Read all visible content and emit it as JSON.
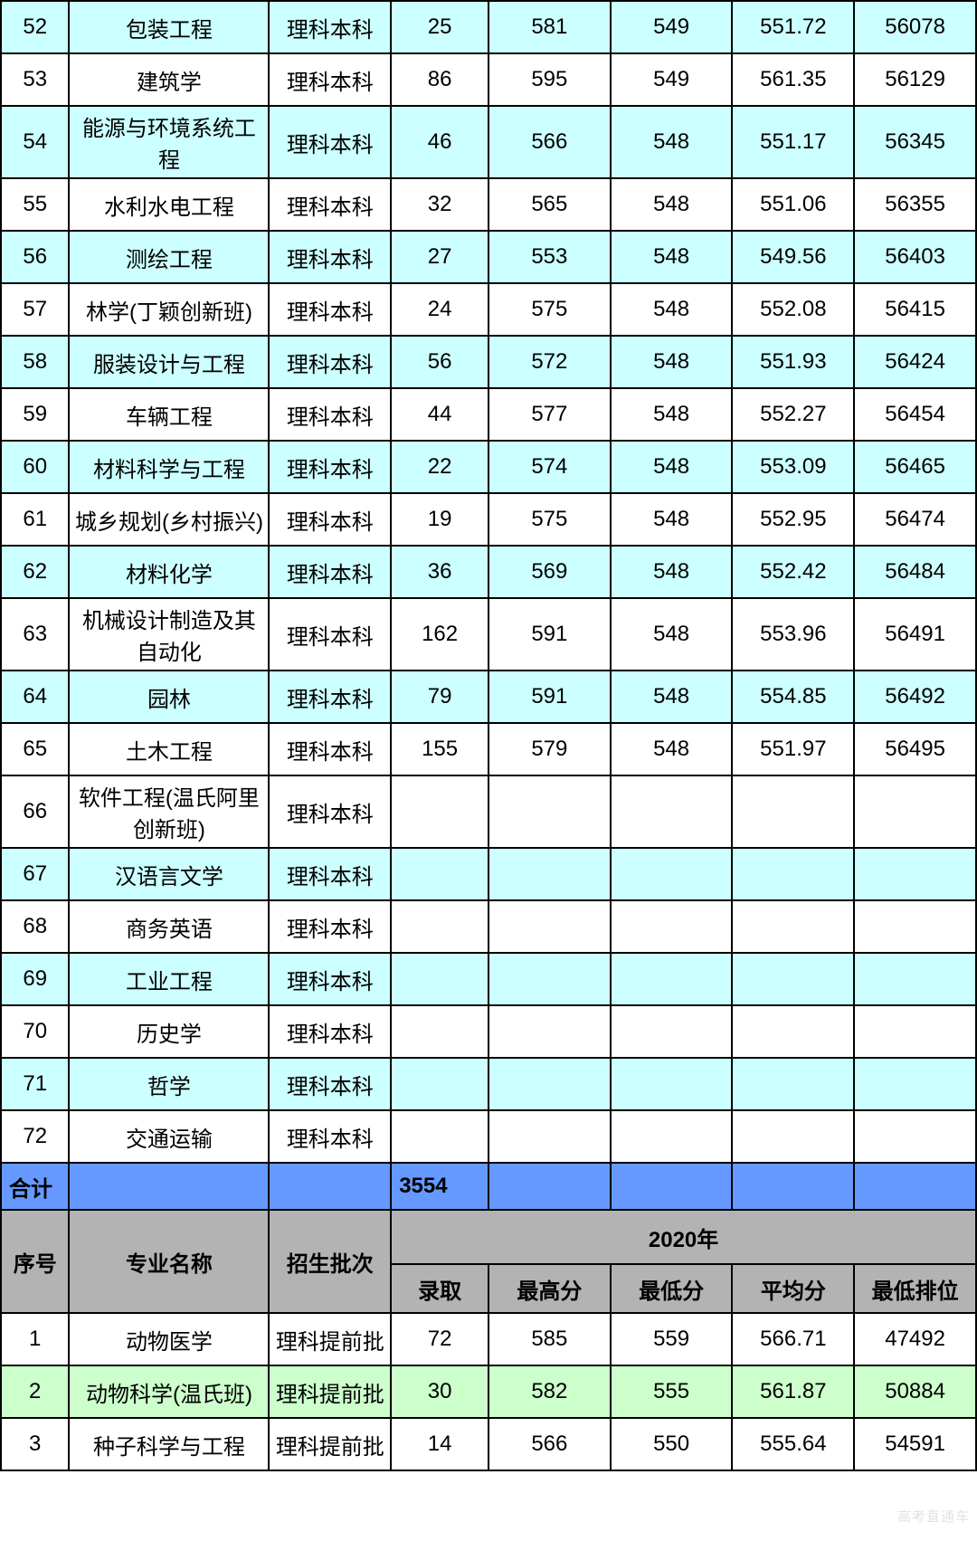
{
  "columns": {
    "widths_pct": [
      7.0,
      20.5,
      12.5,
      10.0,
      12.5,
      12.5,
      12.5,
      12.5
    ]
  },
  "top_rows": [
    {
      "n": "52",
      "major": "包装工程",
      "batch": "理科本科",
      "c4": "25",
      "c5": "581",
      "c6": "549",
      "c7": "551.72",
      "c8": "56078",
      "style": "even"
    },
    {
      "n": "53",
      "major": "建筑学",
      "batch": "理科本科",
      "c4": "86",
      "c5": "595",
      "c6": "549",
      "c7": "561.35",
      "c8": "56129",
      "style": "odd"
    },
    {
      "n": "54",
      "major": "能源与环境系统工程",
      "batch": "理科本科",
      "c4": "46",
      "c5": "566",
      "c6": "548",
      "c7": "551.17",
      "c8": "56345",
      "style": "even"
    },
    {
      "n": "55",
      "major": "水利水电工程",
      "batch": "理科本科",
      "c4": "32",
      "c5": "565",
      "c6": "548",
      "c7": "551.06",
      "c8": "56355",
      "style": "odd"
    },
    {
      "n": "56",
      "major": "测绘工程",
      "batch": "理科本科",
      "c4": "27",
      "c5": "553",
      "c6": "548",
      "c7": "549.56",
      "c8": "56403",
      "style": "even"
    },
    {
      "n": "57",
      "major": "林学(丁颖创新班)",
      "batch": "理科本科",
      "c4": "24",
      "c5": "575",
      "c6": "548",
      "c7": "552.08",
      "c8": "56415",
      "style": "odd"
    },
    {
      "n": "58",
      "major": "服装设计与工程",
      "batch": "理科本科",
      "c4": "56",
      "c5": "572",
      "c6": "548",
      "c7": "551.93",
      "c8": "56424",
      "style": "even"
    },
    {
      "n": "59",
      "major": "车辆工程",
      "batch": "理科本科",
      "c4": "44",
      "c5": "577",
      "c6": "548",
      "c7": "552.27",
      "c8": "56454",
      "style": "odd"
    },
    {
      "n": "60",
      "major": "材料科学与工程",
      "batch": "理科本科",
      "c4": "22",
      "c5": "574",
      "c6": "548",
      "c7": "553.09",
      "c8": "56465",
      "style": "even"
    },
    {
      "n": "61",
      "major": "城乡规划(乡村振兴)",
      "batch": "理科本科",
      "c4": "19",
      "c5": "575",
      "c6": "548",
      "c7": "552.95",
      "c8": "56474",
      "style": "odd"
    },
    {
      "n": "62",
      "major": "材料化学",
      "batch": "理科本科",
      "c4": "36",
      "c5": "569",
      "c6": "548",
      "c7": "552.42",
      "c8": "56484",
      "style": "even"
    },
    {
      "n": "63",
      "major": "机械设计制造及其自动化",
      "batch": "理科本科",
      "c4": "162",
      "c5": "591",
      "c6": "548",
      "c7": "553.96",
      "c8": "56491",
      "style": "odd"
    },
    {
      "n": "64",
      "major": "园林",
      "batch": "理科本科",
      "c4": "79",
      "c5": "591",
      "c6": "548",
      "c7": "554.85",
      "c8": "56492",
      "style": "even"
    },
    {
      "n": "65",
      "major": "土木工程",
      "batch": "理科本科",
      "c4": "155",
      "c5": "579",
      "c6": "548",
      "c7": "551.97",
      "c8": "56495",
      "style": "odd"
    },
    {
      "n": "66",
      "major": "软件工程(温氏阿里创新班)",
      "batch": "理科本科",
      "c4": "",
      "c5": "",
      "c6": "",
      "c7": "",
      "c8": "",
      "style": "odd"
    },
    {
      "n": "67",
      "major": "汉语言文学",
      "batch": "理科本科",
      "c4": "",
      "c5": "",
      "c6": "",
      "c7": "",
      "c8": "",
      "style": "even"
    },
    {
      "n": "68",
      "major": "商务英语",
      "batch": "理科本科",
      "c4": "",
      "c5": "",
      "c6": "",
      "c7": "",
      "c8": "",
      "style": "odd"
    },
    {
      "n": "69",
      "major": "工业工程",
      "batch": "理科本科",
      "c4": "",
      "c5": "",
      "c6": "",
      "c7": "",
      "c8": "",
      "style": "even"
    },
    {
      "n": "70",
      "major": "历史学",
      "batch": "理科本科",
      "c4": "",
      "c5": "",
      "c6": "",
      "c7": "",
      "c8": "",
      "style": "odd"
    },
    {
      "n": "71",
      "major": "哲学",
      "batch": "理科本科",
      "c4": "",
      "c5": "",
      "c6": "",
      "c7": "",
      "c8": "",
      "style": "even"
    },
    {
      "n": "72",
      "major": "交通运输",
      "batch": "理科本科",
      "c4": "",
      "c5": "",
      "c6": "",
      "c7": "",
      "c8": "",
      "style": "odd"
    }
  ],
  "total_row": {
    "label": "合计",
    "value": "3554"
  },
  "header": {
    "col1": "序号",
    "col2": "专业名称",
    "col3": "招生批次",
    "year": "2020年",
    "sub4": "录取",
    "sub5": "最高分",
    "sub6": "最低分",
    "sub7": "平均分",
    "sub8": "最低排位"
  },
  "bottom_rows": [
    {
      "n": "1",
      "major": "动物医学",
      "batch": "理科提前批",
      "c4": "72",
      "c5": "585",
      "c6": "559",
      "c7": "566.71",
      "c8": "47492",
      "style": "white"
    },
    {
      "n": "2",
      "major": "动物科学(温氏班)",
      "batch": "理科提前批",
      "c4": "30",
      "c5": "582",
      "c6": "555",
      "c7": "561.87",
      "c8": "50884",
      "style": "green"
    },
    {
      "n": "3",
      "major": "种子科学与工程",
      "batch": "理科提前批",
      "c4": "14",
      "c5": "566",
      "c6": "550",
      "c7": "555.64",
      "c8": "54591",
      "style": "white"
    }
  ],
  "watermark": "高考直通车",
  "colors": {
    "even_bg": "#ccffff",
    "odd_bg": "#ffffff",
    "total_bg": "#6699ff",
    "header_bg": "#b3b3b3",
    "green_bg": "#ccffcc",
    "border": "#000000"
  }
}
